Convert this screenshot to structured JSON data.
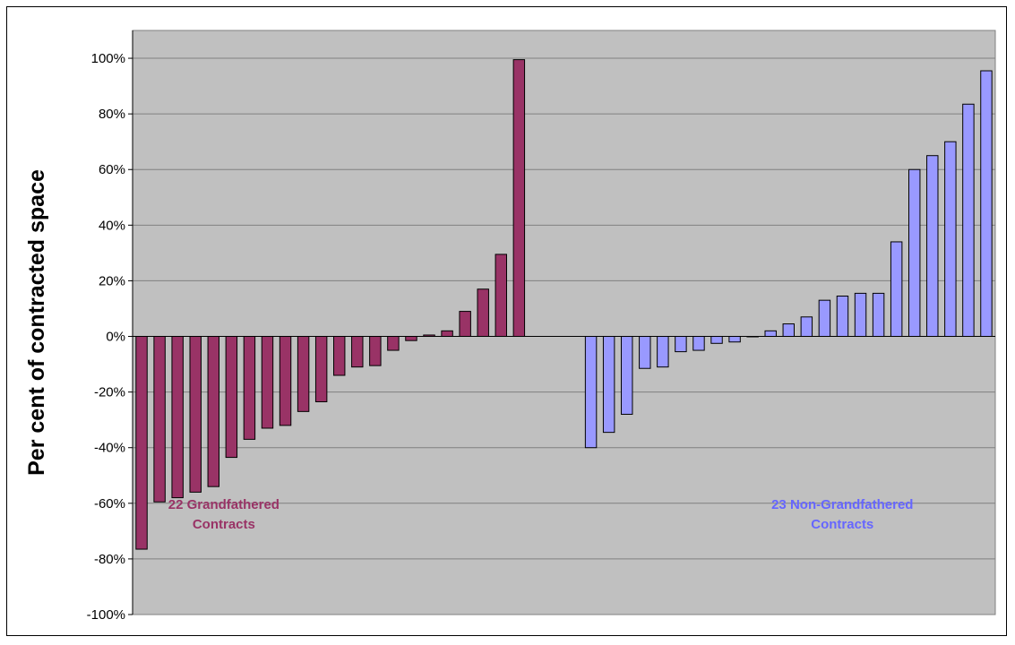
{
  "chart_data": {
    "type": "bar",
    "title": "",
    "xlabel": "",
    "ylabel": "Per cent of contracted space",
    "ylim": [
      -100,
      110
    ],
    "yticks": [
      -100,
      -80,
      -60,
      -40,
      -20,
      0,
      20,
      40,
      60,
      80,
      100
    ],
    "ytick_labels": [
      "-100%",
      "-80%",
      "-60%",
      "-40%",
      "-20%",
      "0%",
      "20%",
      "40%",
      "60%",
      "80%",
      "100%"
    ],
    "grid": true,
    "plot_background": "#C0C0C0",
    "gap_slots_between_groups": 3,
    "series": [
      {
        "name": "22 Grandfathered Contracts",
        "color": "#993366",
        "values": [
          -76.5,
          -59.5,
          -58,
          -56,
          -54,
          -43.5,
          -37,
          -33,
          -32,
          -27,
          -23.5,
          -14,
          -11,
          -10.5,
          -5,
          -1.5,
          0.5,
          2,
          9,
          17,
          29.5,
          99.5
        ]
      },
      {
        "name": "23 Non-Grandfathered Contracts",
        "color": "#9999FF",
        "values": [
          -40,
          -34.5,
          -28,
          -11.5,
          -11,
          -5.5,
          -5,
          -2.5,
          -2,
          0,
          2,
          4.5,
          7,
          13,
          14.5,
          15.5,
          15.5,
          34,
          60,
          65,
          70,
          83.5,
          95.5
        ]
      }
    ],
    "annotations": [
      {
        "lines": [
          "22 Grandfathered",
          "Contracts"
        ],
        "color": "#993366",
        "x_value": 35,
        "y_value": -62
      },
      {
        "lines": [
          "23 Non-Grandfathered",
          "Contracts"
        ],
        "color": "#6666FF",
        "x_value": 15,
        "y_value": -62
      }
    ]
  }
}
